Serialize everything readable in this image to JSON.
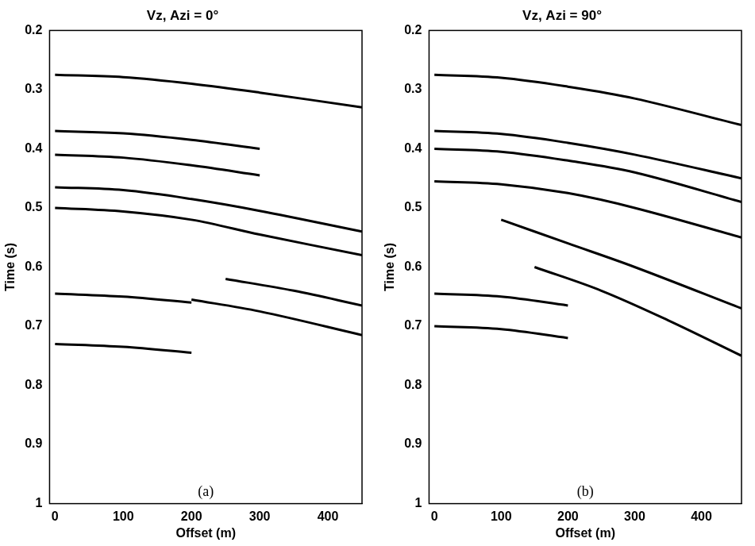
{
  "chart_data": [
    {
      "type": "line",
      "title": "Vz, Azi = 0°",
      "label": "(a)",
      "x_label": "Offset (m)",
      "y_label": "Time (s)",
      "xlim": [
        -8,
        450
      ],
      "xticks": [
        0,
        100,
        200,
        300,
        400
      ],
      "ylim": [
        0.2,
        1
      ],
      "yticks": [
        0.2,
        0.3,
        0.4,
        0.5,
        0.6,
        0.7,
        0.8,
        0.9,
        1
      ],
      "log": "y_reversed_false",
      "grid": false,
      "series": [
        {
          "color": "#000000",
          "x": [
            0,
            100,
            200,
            300,
            450
          ],
          "values": [
            0.275,
            0.279,
            0.29,
            0.305,
            0.33
          ]
        },
        {
          "color": "#000000",
          "x": [
            0,
            100,
            200,
            300
          ],
          "values": [
            0.37,
            0.374,
            0.385,
            0.4
          ]
        },
        {
          "color": "#000000",
          "x": [
            0,
            100,
            200,
            300
          ],
          "values": [
            0.41,
            0.415,
            0.428,
            0.445
          ]
        },
        {
          "color": "#000000",
          "x": [
            0,
            100,
            200,
            300,
            450
          ],
          "values": [
            0.465,
            0.47,
            0.485,
            0.505,
            0.54
          ]
        },
        {
          "color": "#000000",
          "x": [
            0,
            100,
            200,
            300,
            450
          ],
          "values": [
            0.5,
            0.506,
            0.52,
            0.545,
            0.58
          ]
        },
        {
          "color": "#000000",
          "x": [
            0,
            100,
            200
          ],
          "values": [
            0.645,
            0.65,
            0.66
          ]
        },
        {
          "color": "#000000",
          "x": [
            250,
            350,
            450
          ],
          "values": [
            0.62,
            0.64,
            0.665
          ]
        },
        {
          "color": "#000000",
          "x": [
            200,
            300,
            450
          ],
          "values": [
            0.655,
            0.675,
            0.715
          ]
        },
        {
          "color": "#000000",
          "x": [
            0,
            100,
            200
          ],
          "values": [
            0.73,
            0.735,
            0.745
          ]
        }
      ]
    },
    {
      "type": "line",
      "title": "Vz, Azi = 90°",
      "label": "(b)",
      "x_label": "Offset (m)",
      "y_label": "Time (s)",
      "xlim": [
        -8,
        460
      ],
      "xticks": [
        0,
        100,
        200,
        300,
        400
      ],
      "ylim": [
        0.2,
        1
      ],
      "yticks": [
        0.2,
        0.3,
        0.4,
        0.5,
        0.6,
        0.7,
        0.8,
        0.9,
        1
      ],
      "grid": false,
      "series": [
        {
          "color": "#000000",
          "x": [
            0,
            100,
            200,
            300,
            460
          ],
          "values": [
            0.275,
            0.28,
            0.295,
            0.315,
            0.36
          ]
        },
        {
          "color": "#000000",
          "x": [
            0,
            100,
            200,
            300,
            460
          ],
          "values": [
            0.37,
            0.375,
            0.39,
            0.41,
            0.45
          ]
        },
        {
          "color": "#000000",
          "x": [
            0,
            100,
            200,
            300,
            460
          ],
          "values": [
            0.4,
            0.405,
            0.42,
            0.44,
            0.49
          ]
        },
        {
          "color": "#000000",
          "x": [
            0,
            100,
            200,
            300,
            460
          ],
          "values": [
            0.455,
            0.46,
            0.475,
            0.5,
            0.55
          ]
        },
        {
          "color": "#000000",
          "x": [
            100,
            200,
            300,
            460
          ],
          "values": [
            0.52,
            0.56,
            0.6,
            0.67
          ]
        },
        {
          "color": "#000000",
          "x": [
            150,
            250,
            350,
            460
          ],
          "values": [
            0.6,
            0.64,
            0.69,
            0.75
          ]
        },
        {
          "color": "#000000",
          "x": [
            0,
            100,
            200
          ],
          "values": [
            0.645,
            0.65,
            0.665
          ]
        },
        {
          "color": "#000000",
          "x": [
            0,
            100,
            200
          ],
          "values": [
            0.7,
            0.705,
            0.72
          ]
        }
      ]
    }
  ]
}
